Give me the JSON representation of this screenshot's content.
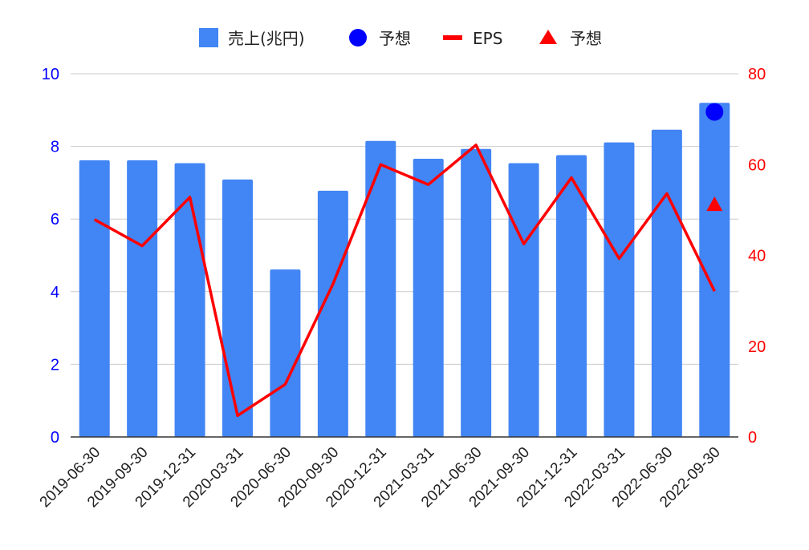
{
  "chart_data": {
    "type": "bar",
    "title": "",
    "xlabel": "",
    "ylabel": "",
    "categories": [
      "2019-06-30",
      "2019-09-30",
      "2019-12-31",
      "2020-03-31",
      "2020-06-30",
      "2020-09-30",
      "2020-12-31",
      "2021-03-31",
      "2021-06-30",
      "2021-09-30",
      "2021-12-31",
      "2022-03-31",
      "2022-06-30",
      "2022-09-30"
    ],
    "ylim_left": [
      0,
      10
    ],
    "ylim_right": [
      0,
      80
    ],
    "yticks_left": [
      "0",
      "2",
      "4",
      "6",
      "8",
      "10"
    ],
    "yticks_right": [
      "0",
      "20",
      "40",
      "60",
      "80"
    ],
    "grid": true,
    "legend_position": "top",
    "series": [
      {
        "name": "売上(兆円)",
        "kind": "bar",
        "axis": "left",
        "color": "#4285f4",
        "values": [
          7.62,
          7.62,
          7.54,
          7.09,
          4.61,
          6.78,
          8.15,
          7.66,
          7.93,
          7.54,
          7.76,
          8.11,
          8.46,
          9.2
        ]
      },
      {
        "name": "予想",
        "kind": "marker-circle",
        "axis": "left",
        "color": "#0000ff",
        "points": [
          {
            "category": "2022-09-30",
            "value": 8.95
          }
        ]
      },
      {
        "name": "EPS",
        "kind": "line",
        "axis": "right",
        "color": "#ff0000",
        "values": [
          47.9,
          42.1,
          52.8,
          4.7,
          11.6,
          33.7,
          60.0,
          55.6,
          64.3,
          42.5,
          57.1,
          39.3,
          53.6,
          32.1
        ]
      },
      {
        "name": "予想",
        "kind": "marker-triangle",
        "axis": "right",
        "color": "#ff0000",
        "points": [
          {
            "category": "2022-09-30",
            "value": 51.2
          }
        ]
      }
    ]
  }
}
